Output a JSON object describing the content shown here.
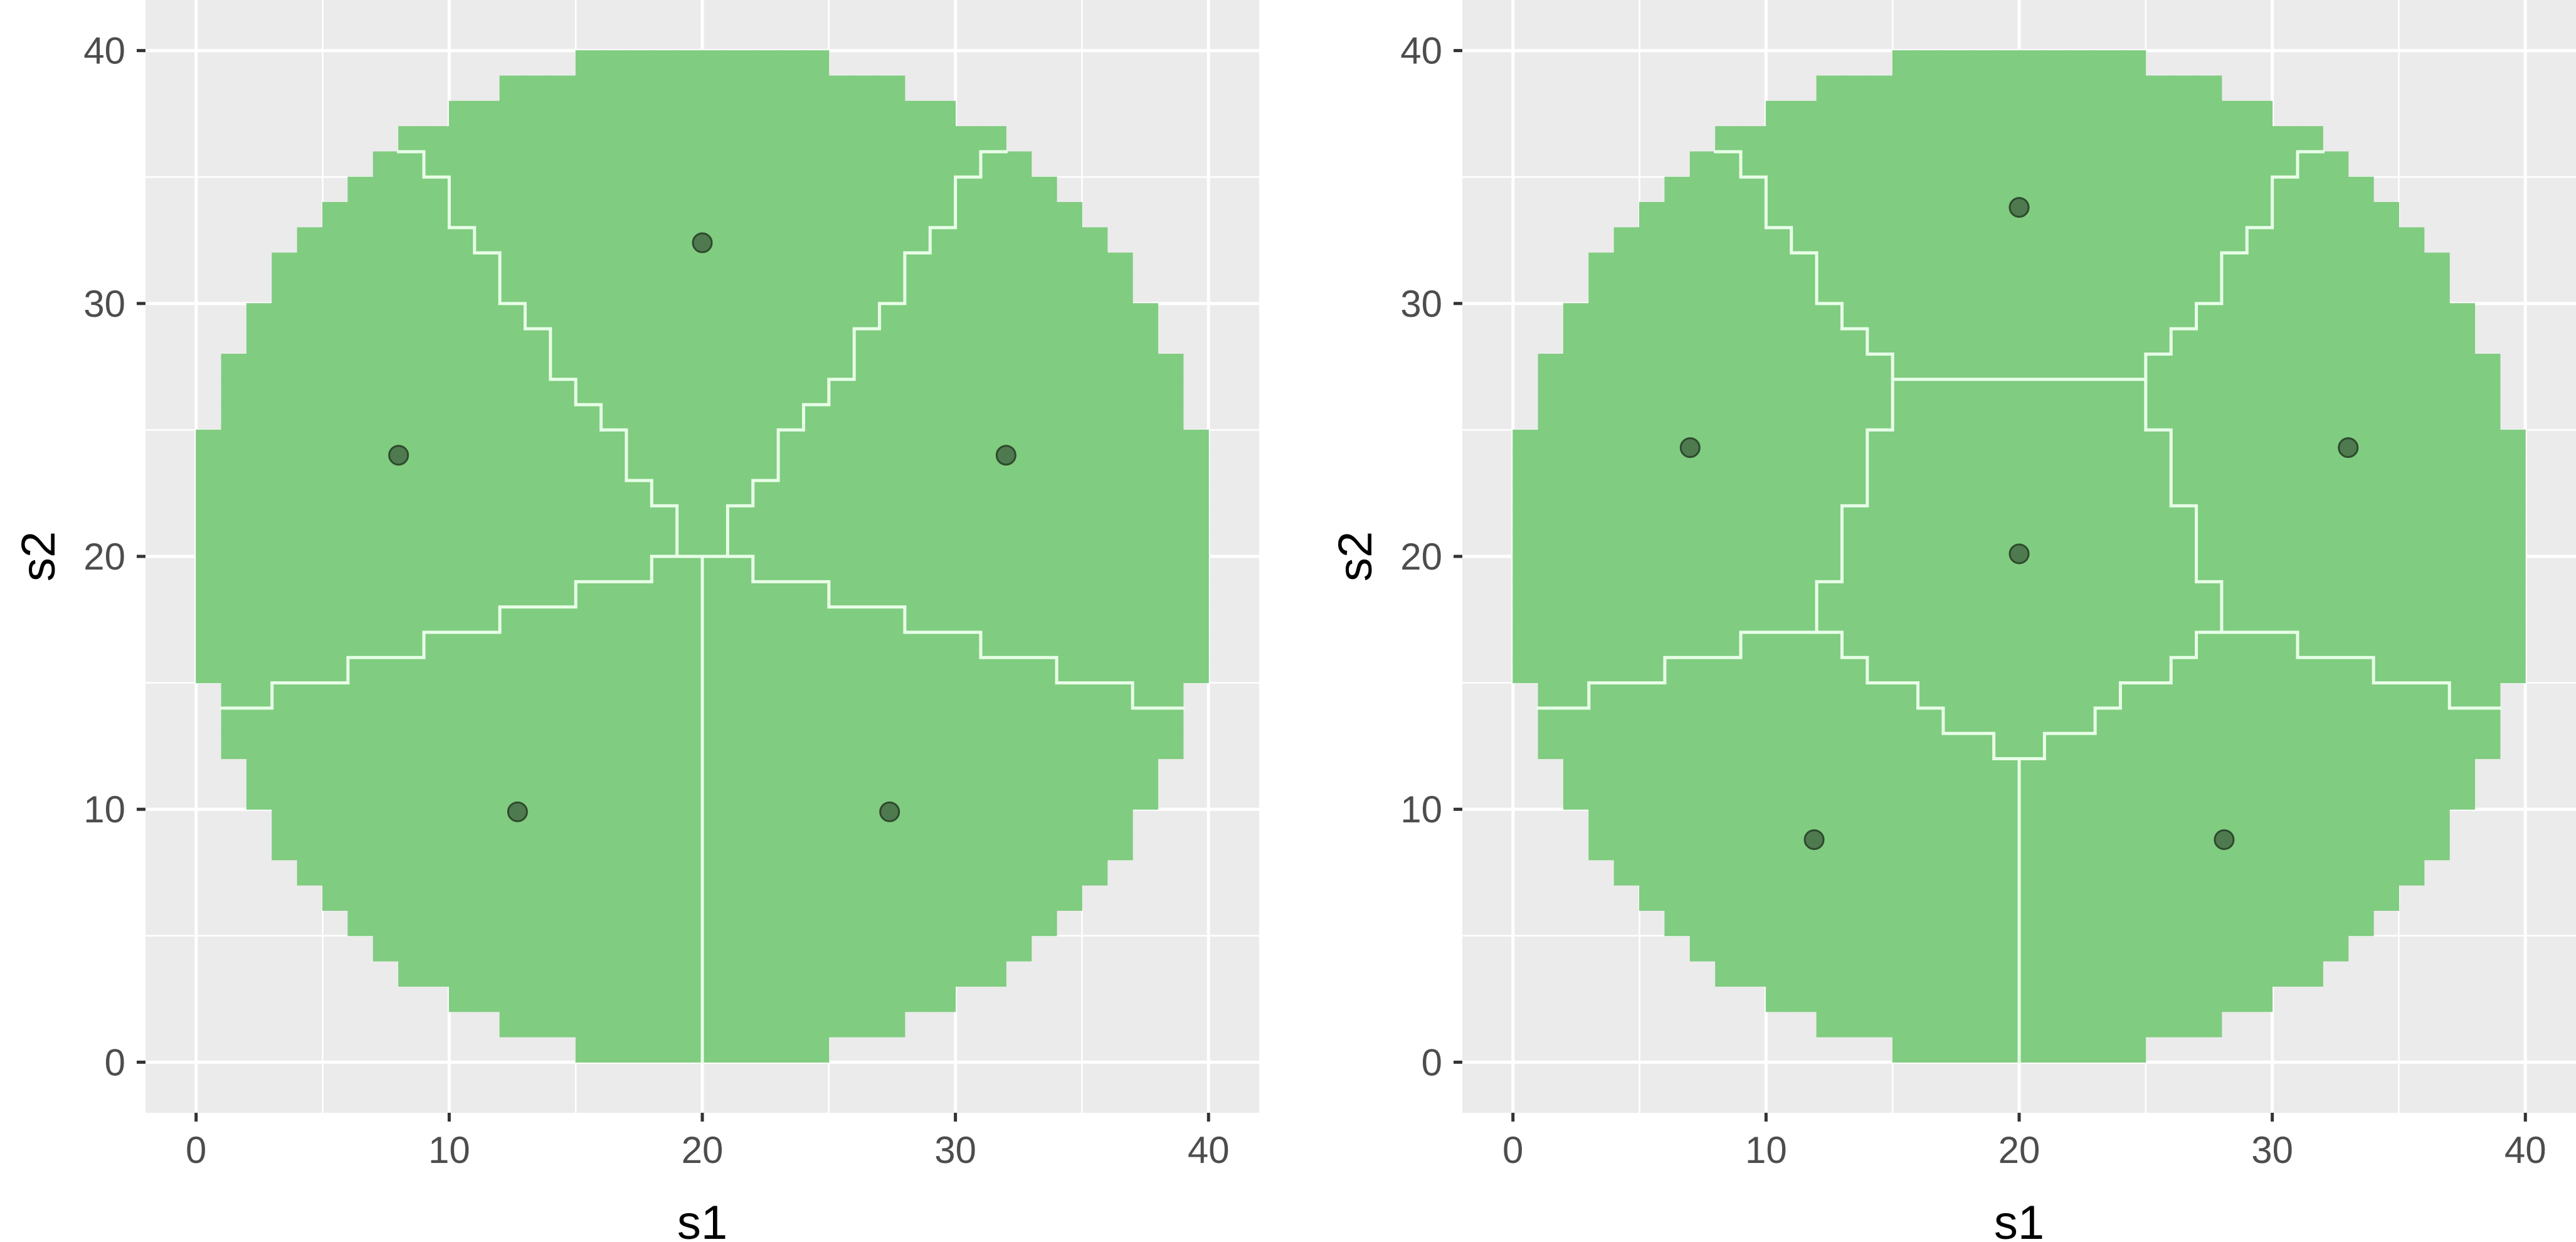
{
  "colors": {
    "panel_background": "#ebebeb",
    "grid_line": "#ffffff",
    "region_fill": "#80cc80",
    "region_border": "#e8ffe8",
    "point_fill": "#4f7a4f",
    "point_stroke": "#2e4a2e",
    "tick_text": "#4d4d4d",
    "axis_title": "#000000"
  },
  "chart_data": [
    {
      "type": "scatter",
      "title": "",
      "xlabel": "s1",
      "ylabel": "s2",
      "xlim": [
        -2,
        42
      ],
      "ylim": [
        -2,
        42
      ],
      "x_ticks": [
        0,
        10,
        20,
        30,
        40
      ],
      "y_ticks": [
        0,
        10,
        20,
        30,
        40
      ],
      "x_tick_labels": [
        "0",
        "10",
        "20",
        "30",
        "40"
      ],
      "y_tick_labels": [
        "0",
        "10",
        "20",
        "30",
        "40"
      ],
      "grid": true,
      "region": "disc of grid cells, centre (20, 20), radius 20, split into 5 Voronoi cells",
      "points": [
        {
          "x": 20.0,
          "y": 32.4
        },
        {
          "x": 8.0,
          "y": 24.0
        },
        {
          "x": 32.0,
          "y": 24.0
        },
        {
          "x": 12.7,
          "y": 9.9
        },
        {
          "x": 27.4,
          "y": 9.9
        }
      ]
    },
    {
      "type": "scatter",
      "title": "",
      "xlabel": "s1",
      "ylabel": "s2",
      "xlim": [
        -2,
        42
      ],
      "ylim": [
        -2,
        42
      ],
      "x_ticks": [
        0,
        10,
        20,
        30,
        40
      ],
      "y_ticks": [
        0,
        10,
        20,
        30,
        40
      ],
      "x_tick_labels": [
        "0",
        "10",
        "20",
        "30",
        "40"
      ],
      "y_tick_labels": [
        "0",
        "10",
        "20",
        "30",
        "40"
      ],
      "grid": true,
      "region": "disc of grid cells, centre (20, 20), radius 20, split into 6 Voronoi cells",
      "points": [
        {
          "x": 20.0,
          "y": 33.8
        },
        {
          "x": 7.0,
          "y": 24.3
        },
        {
          "x": 33.0,
          "y": 24.3
        },
        {
          "x": 20.0,
          "y": 20.1
        },
        {
          "x": 11.9,
          "y": 8.8
        },
        {
          "x": 28.1,
          "y": 8.8
        }
      ]
    }
  ]
}
